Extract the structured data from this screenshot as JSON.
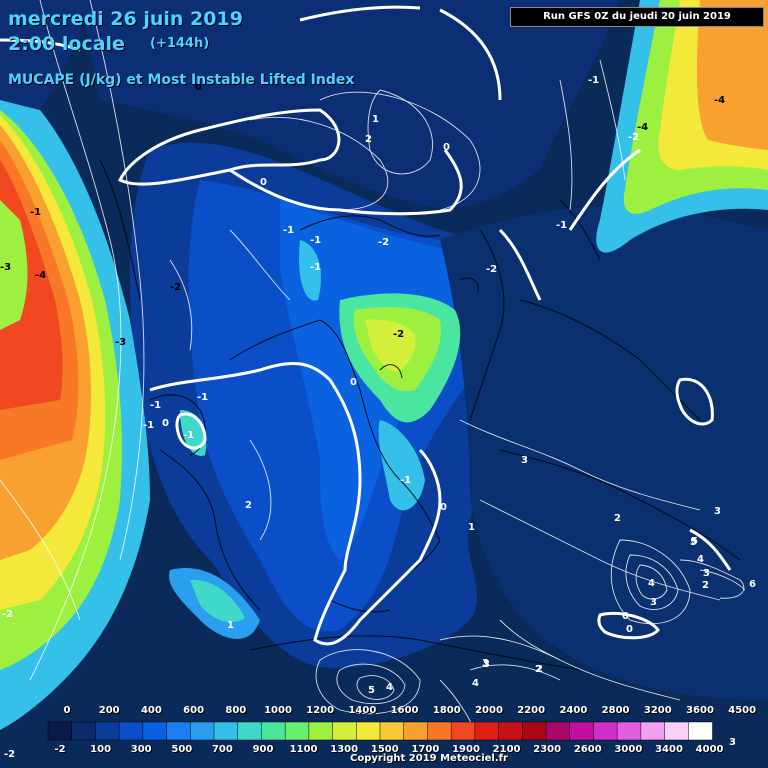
{
  "header": {
    "date_line": "mercredi 26 juin 2019",
    "time_line": "2:00 locale",
    "lead": "(+144h)",
    "field": "MUCAPE (J/kg) et Most Instable Lifted Index",
    "run": "Run GFS 0Z du jeudi 20 juin 2019"
  },
  "legend": {
    "top_labels": [
      "0",
      "200",
      "400",
      "600",
      "800",
      "1000",
      "1200",
      "1400",
      "1600",
      "1800",
      "2000",
      "2200",
      "2400",
      "2800",
      "3200",
      "3600",
      "4500"
    ],
    "bottom_labels": [
      "-2",
      "100",
      "300",
      "500",
      "700",
      "900",
      "1100",
      "1300",
      "1500",
      "1700",
      "1900",
      "2100",
      "2300",
      "2600",
      "3000",
      "3400",
      "4000"
    ],
    "colors": [
      "#0b1a4a",
      "#0c2a6e",
      "#0b3c9a",
      "#0a4fc8",
      "#0b62e0",
      "#1a7df0",
      "#2a9ff0",
      "#34c0e8",
      "#40d8c8",
      "#4ae6a0",
      "#6af070",
      "#9ef040",
      "#d4f03a",
      "#f4e83a",
      "#f8c838",
      "#f8a030",
      "#f87828",
      "#f04820",
      "#e02018",
      "#c81018",
      "#a80818",
      "#a8086a",
      "#c010a0",
      "#d030c8",
      "#e060e0",
      "#f0a0f0",
      "#f8d0f8",
      "#ffffff"
    ]
  },
  "copyright": "Copyright 2019 Meteociel.fr",
  "lifted_index_labels": [
    {
      "text": "0",
      "c": "#000"
    },
    {
      "text": "-1",
      "c": "#000"
    },
    {
      "text": "0",
      "c": "#fff"
    },
    {
      "text": "1",
      "c": "#fff"
    },
    {
      "text": "2",
      "c": "#fff"
    },
    {
      "text": "-1",
      "c": "#fff"
    },
    {
      "text": "-3",
      "c": "#000"
    },
    {
      "text": "-2",
      "c": "#000"
    },
    {
      "text": "-4",
      "c": "#000"
    },
    {
      "text": "0",
      "c": "#fff"
    },
    {
      "text": "-1",
      "c": "#fff"
    },
    {
      "text": "-1",
      "c": "#fff"
    },
    {
      "text": "-1",
      "c": "#fff"
    },
    {
      "text": "-2",
      "c": "#fff"
    },
    {
      "text": "-2",
      "c": "#000"
    },
    {
      "text": "-1",
      "c": "#fff"
    },
    {
      "text": "-3",
      "c": "#000"
    },
    {
      "text": "-1",
      "c": "#fff"
    },
    {
      "text": "-4",
      "c": "#000"
    },
    {
      "text": "-2",
      "c": "#fff"
    },
    {
      "text": "-1",
      "c": "#fff"
    },
    {
      "text": "0",
      "c": "#fff"
    },
    {
      "text": "-1",
      "c": "#fff"
    },
    {
      "text": "-2",
      "c": "#fff"
    },
    {
      "text": "-1",
      "c": "#fff"
    },
    {
      "text": "0",
      "c": "#fff"
    },
    {
      "text": "-1",
      "c": "#fff"
    },
    {
      "text": "0",
      "c": "#fff"
    },
    {
      "text": "2",
      "c": "#fff"
    },
    {
      "text": "3",
      "c": "#fff"
    },
    {
      "text": "1",
      "c": "#fff"
    },
    {
      "text": "0",
      "c": "#fff"
    },
    {
      "text": "1",
      "c": "#fff"
    },
    {
      "text": "2",
      "c": "#fff"
    },
    {
      "text": "3",
      "c": "#fff"
    },
    {
      "text": "5",
      "c": "#fff"
    },
    {
      "text": "4",
      "c": "#fff"
    },
    {
      "text": "3",
      "c": "#fff"
    },
    {
      "text": "2",
      "c": "#fff"
    },
    {
      "text": "3",
      "c": "#fff"
    },
    {
      "text": "6",
      "c": "#fff"
    },
    {
      "text": "5",
      "c": "#fff"
    },
    {
      "text": "4",
      "c": "#fff"
    },
    {
      "text": "3",
      "c": "#fff"
    },
    {
      "text": "0",
      "c": "#fff"
    },
    {
      "text": "3",
      "c": "#fff"
    },
    {
      "text": "2",
      "c": "#fff"
    },
    {
      "text": "5",
      "c": "#fff"
    },
    {
      "text": "4",
      "c": "#fff"
    },
    {
      "text": "2",
      "c": "#fff"
    },
    {
      "text": "4",
      "c": "#fff"
    },
    {
      "text": "-4",
      "c": "#000"
    },
    {
      "text": "-2",
      "c": "#fff"
    },
    {
      "text": "3",
      "c": "#fff"
    },
    {
      "text": "-2",
      "c": "#fff"
    }
  ]
}
